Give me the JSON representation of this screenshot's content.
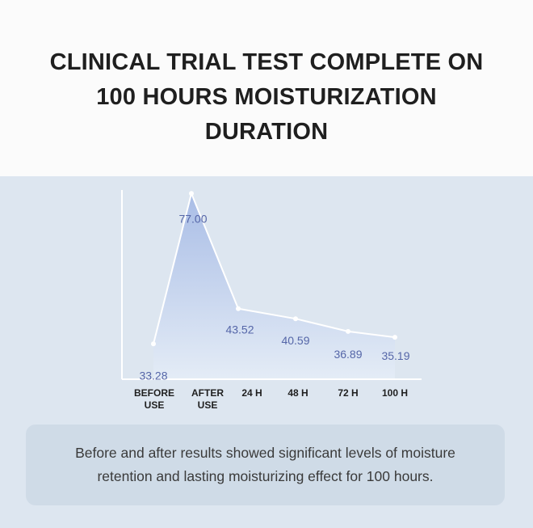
{
  "header": {
    "title_lines": [
      "CLINICAL TRIAL TEST COMPLETE ON",
      "100 HOURS MOISTURIZATION",
      "DURATION"
    ]
  },
  "chart_data": {
    "type": "area",
    "title": "",
    "xlabel": "",
    "ylabel": "",
    "categories": [
      [
        "BEFORE",
        "USE"
      ],
      [
        "AFTER",
        "USE"
      ],
      [
        "24 H"
      ],
      [
        "48 H"
      ],
      [
        "72 H"
      ],
      [
        "100 H"
      ]
    ],
    "series": [
      {
        "values": [
          33.28,
          77.0,
          43.52,
          40.59,
          36.89,
          35.19
        ],
        "value_labels": [
          "33.28",
          "77.00",
          "43.52",
          "40.59",
          "36.89",
          "35.19"
        ]
      }
    ],
    "ylim": [
      23,
      78
    ],
    "grid": false,
    "colors": {
      "fill_top": "#a9bde6",
      "fill_bottom": "#e4ecf6",
      "line": "#ffffff",
      "value_label": "#5566a8"
    }
  },
  "caption": {
    "text": "Before and after results showed significant levels of moisture\nretention and  lasting moisturizing effect for 100 hours."
  }
}
